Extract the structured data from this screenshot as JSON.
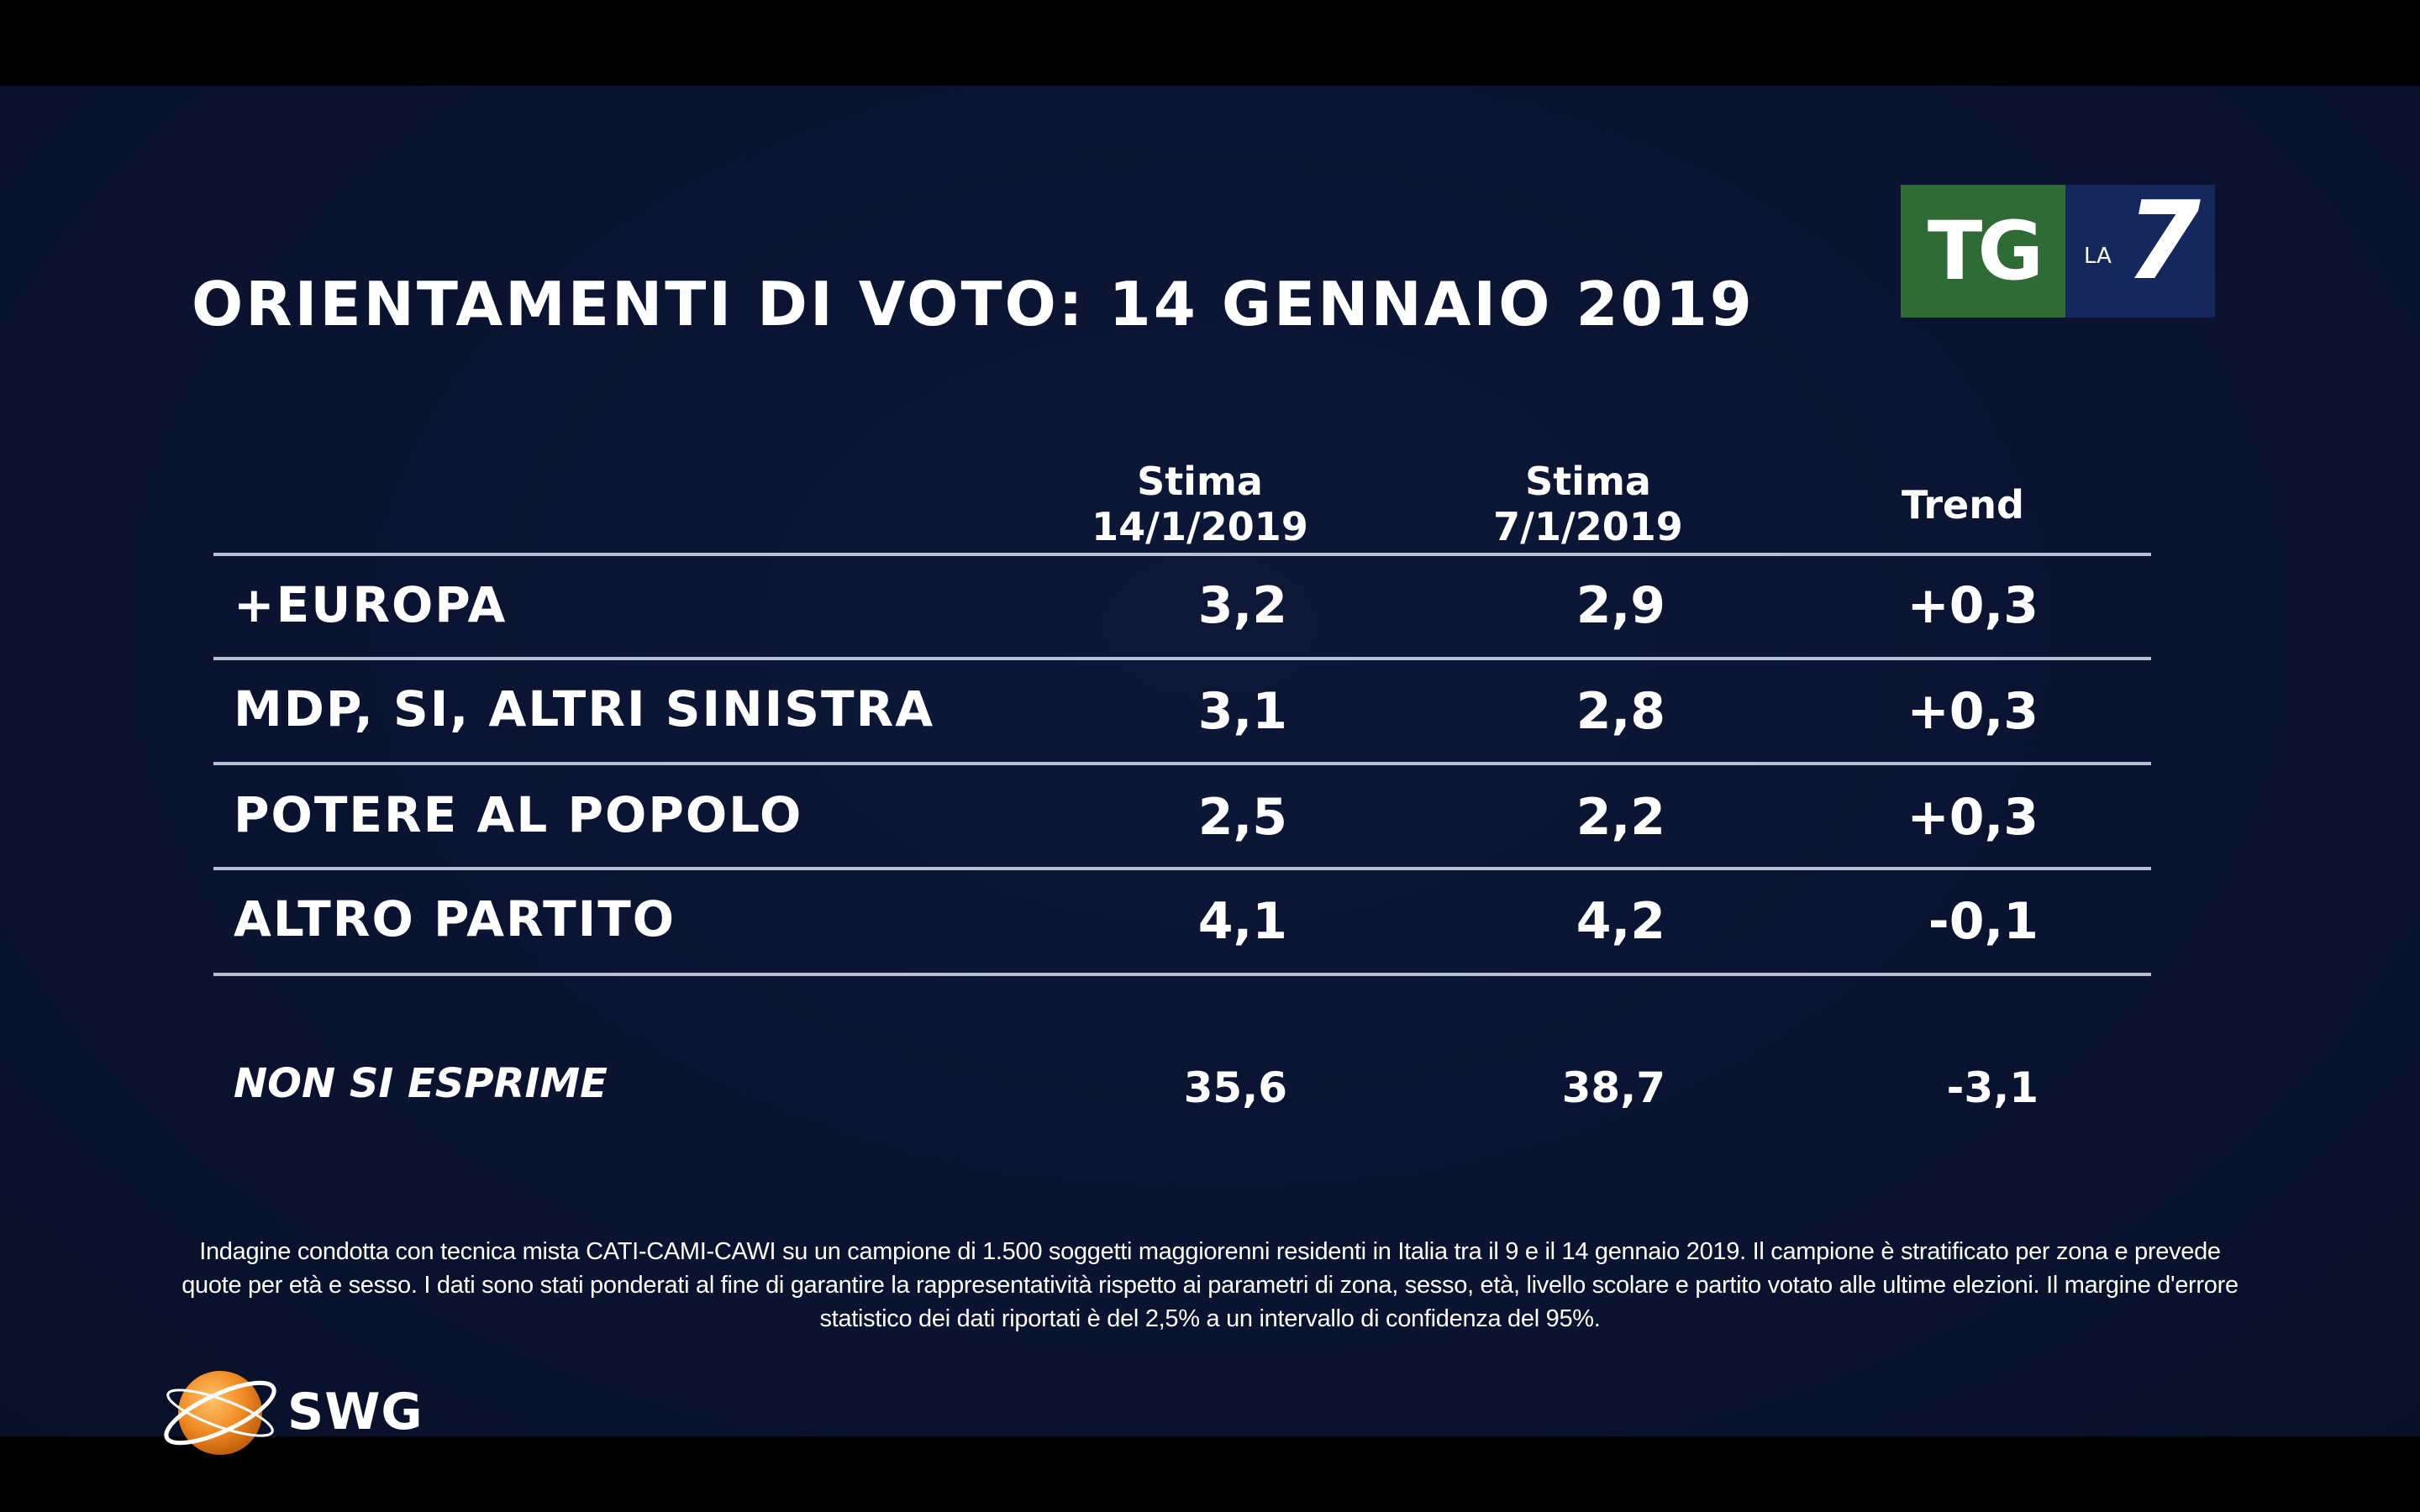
{
  "title": "ORIENTAMENTI DI VOTO: 14 GENNAIO 2019",
  "logo": {
    "tg": "TG",
    "la": "LA",
    "seven": "7"
  },
  "chart_data": {
    "type": "table",
    "title": "ORIENTAMENTI DI VOTO: 14 GENNAIO 2019",
    "columns": [
      {
        "line1": "Stima",
        "line2": "14/1/2019"
      },
      {
        "line1": "Stima",
        "line2": "7/1/2019"
      },
      {
        "line1": "Trend",
        "line2": ""
      }
    ],
    "rows": [
      {
        "label": "+EUROPA",
        "values": [
          "3,2",
          "2,9",
          "+0,3"
        ]
      },
      {
        "label": "MDP, SI, ALTRI SINISTRA",
        "values": [
          "3,1",
          "2,8",
          "+0,3"
        ]
      },
      {
        "label": "POTERE AL POPOLO",
        "values": [
          "2,5",
          "2,2",
          "+0,3"
        ]
      },
      {
        "label": "ALTRO PARTITO",
        "values": [
          "4,1",
          "4,2",
          "-0,1"
        ]
      }
    ],
    "footer_row": {
      "label": "NON SI ESPRIME",
      "values": [
        "35,6",
        "38,7",
        "-3,1"
      ]
    }
  },
  "note": "Indagine condotta con tecnica mista CATI-CAMI-CAWI su un campione di 1.500 soggetti maggiorenni residenti in Italia tra il 9 e il 14 gennaio 2019. Il campione è stratificato per zona e prevede quote per età e sesso. I dati sono stati ponderati al fine di garantire la rappresentatività rispetto ai parametri di zona, sesso, età, livello scolare e partito votato alle ultime elezioni. Il margine d'errore statistico dei dati riportati è del 2,5% a un intervallo di confidenza del 95%.",
  "source_logo_text": "SWG",
  "colors": {
    "background": "#0a1330",
    "tg_green": "#2e6b35",
    "la7_blue": "#14285e",
    "swg_orange": "#f08a24"
  }
}
